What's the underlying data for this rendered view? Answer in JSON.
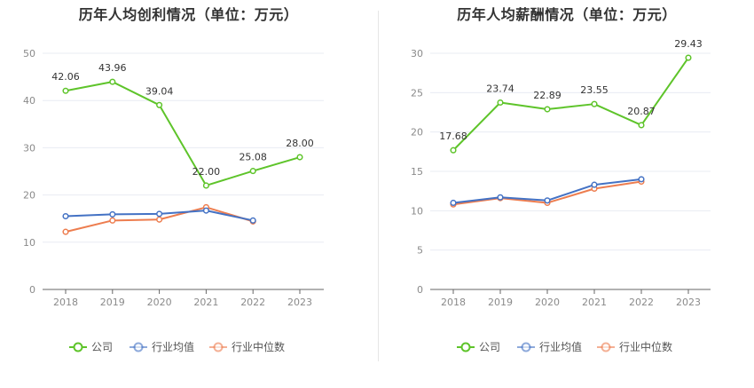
{
  "chart_data": [
    {
      "type": "line",
      "title": "历年人均创利情况（单位：万元）",
      "categories": [
        "2018",
        "2019",
        "2020",
        "2021",
        "2022",
        "2023"
      ],
      "ylim": [
        0,
        50
      ],
      "yticks": [
        0,
        10,
        20,
        30,
        40,
        50
      ],
      "grid": true,
      "legend_position": "bottom",
      "series": [
        {
          "name": "公司",
          "color": "#5ec42a",
          "values": [
            42.06,
            43.96,
            39.04,
            22.0,
            25.08,
            28.0
          ],
          "labels": [
            "42.06",
            "43.96",
            "39.04",
            "22.00",
            "25.08",
            "28.00"
          ]
        },
        {
          "name": "行业均值",
          "color": "#4472c4",
          "values": [
            15.5,
            15.9,
            16.0,
            16.7,
            14.6,
            null
          ]
        },
        {
          "name": "行业中位数",
          "color": "#ed7d4f",
          "values": [
            12.2,
            14.6,
            14.8,
            17.4,
            14.4,
            null
          ]
        }
      ]
    },
    {
      "type": "line",
      "title": "历年人均薪酬情况（单位：万元）",
      "categories": [
        "2018",
        "2019",
        "2020",
        "2021",
        "2022",
        "2023"
      ],
      "ylim": [
        0,
        30
      ],
      "yticks": [
        0,
        5,
        10,
        15,
        20,
        25,
        30
      ],
      "grid": true,
      "legend_position": "bottom",
      "series": [
        {
          "name": "公司",
          "color": "#5ec42a",
          "values": [
            17.68,
            23.74,
            22.89,
            23.55,
            20.87,
            29.43
          ],
          "labels": [
            "17.68",
            "23.74",
            "22.89",
            "23.55",
            "20.87",
            "29.43"
          ]
        },
        {
          "name": "行业均值",
          "color": "#4472c4",
          "values": [
            11.0,
            11.7,
            11.3,
            13.3,
            14.0,
            null
          ]
        },
        {
          "name": "行业中位数",
          "color": "#ed7d4f",
          "values": [
            10.8,
            11.6,
            11.0,
            12.8,
            13.7,
            null
          ]
        }
      ]
    }
  ]
}
